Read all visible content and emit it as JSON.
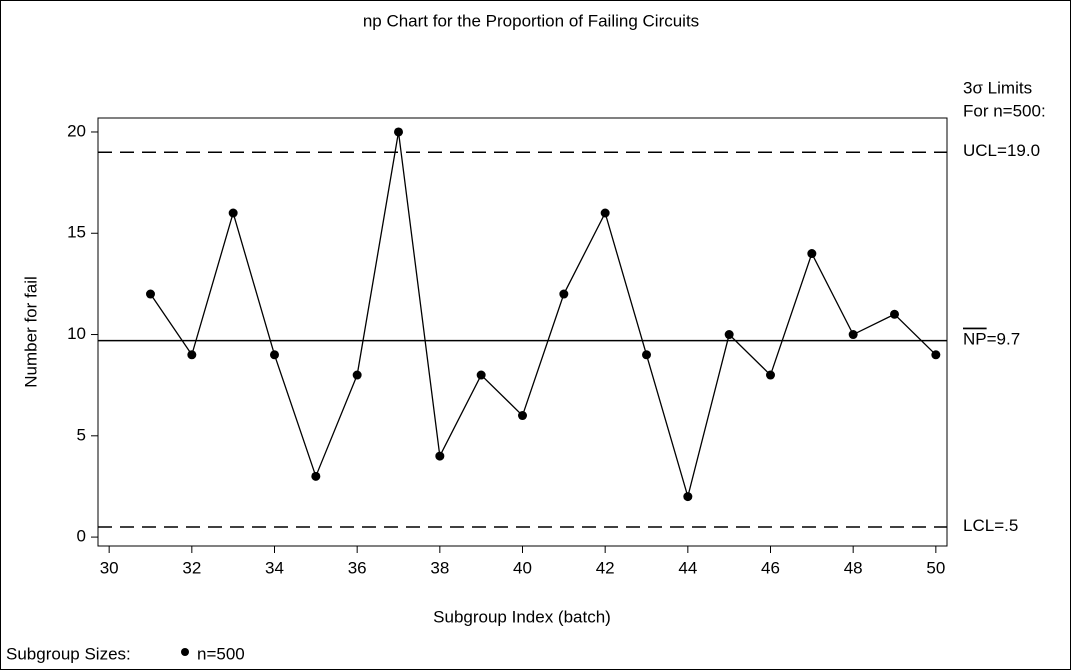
{
  "chart_data": {
    "type": "line",
    "title": "np Chart for the Proportion of Failing Circuits",
    "x_label": "Subgroup Index (batch)",
    "y_label": "Number for fail",
    "x": [
      31,
      32,
      33,
      34,
      35,
      36,
      37,
      38,
      39,
      40,
      41,
      42,
      43,
      44,
      45,
      46,
      47,
      48,
      49,
      50
    ],
    "series": [
      {
        "name": "n=500",
        "color": "#000000",
        "values": [
          12,
          9,
          16,
          9,
          3,
          8,
          20,
          4,
          8,
          6,
          12,
          16,
          9,
          2,
          10,
          8,
          14,
          10,
          11,
          9
        ]
      }
    ],
    "xlim": [
      29.73,
      50.27
    ],
    "xticks": [
      30,
      32,
      34,
      36,
      38,
      40,
      42,
      44,
      46,
      48,
      50
    ],
    "ylim": [
      -0.44,
      20.69
    ],
    "yticks": [
      0,
      5,
      10,
      15,
      20
    ],
    "limits_header": [
      "3σ Limits",
      "For n=500:"
    ],
    "control_limits": [
      {
        "name": "UCL",
        "text": "=19.0",
        "value": 19.0,
        "dashed": true,
        "overline": false
      },
      {
        "name": "NP",
        "text": "=9.7",
        "value": 9.7,
        "dashed": false,
        "overline": true
      },
      {
        "name": "LCL",
        "text": "=.5",
        "value": 0.5,
        "dashed": true,
        "overline": false
      }
    ],
    "legend_title": "Subgroup Sizes:"
  }
}
